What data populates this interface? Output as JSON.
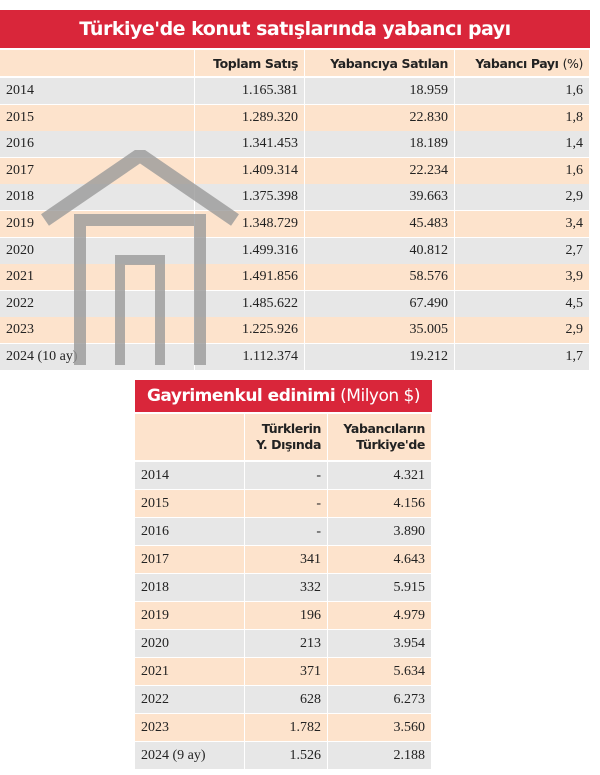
{
  "table1": {
    "title": "Türkiye'de konut satışlarında yabancı payı",
    "columns": [
      "Toplam Satış",
      "Yabancıya Satılan",
      "Yabancı Payı"
    ],
    "unit": "(%)",
    "rows": [
      [
        "2014",
        "1.165.381",
        "18.959",
        "1,6"
      ],
      [
        "2015",
        "1.289.320",
        "22.830",
        "1,8"
      ],
      [
        "2016",
        "1.341.453",
        "18.189",
        "1,4"
      ],
      [
        "2017",
        "1.409.314",
        "22.234",
        "1,6"
      ],
      [
        "2018",
        "1.375.398",
        "39.663",
        "2,9"
      ],
      [
        "2019",
        "1.348.729",
        "45.483",
        "3,4"
      ],
      [
        "2020",
        "1.499.316",
        "40.812",
        "2,7"
      ],
      [
        "2021",
        "1.491.856",
        "58.576",
        "3,9"
      ],
      [
        "2022",
        "1.485.622",
        "67.490",
        "4,5"
      ],
      [
        "2023",
        "1.225.926",
        "35.005",
        "2,9"
      ],
      [
        "2024 (10 ay)",
        "1.112.374",
        "19.212",
        "1,7"
      ]
    ]
  },
  "table2": {
    "title": "Gayrimenkul edinimi",
    "unit": "(Milyon $)",
    "columns": [
      [
        "Türklerin",
        "Y. Dışında"
      ],
      [
        "Yabancıların",
        "Türkiye'de"
      ]
    ],
    "rows": [
      [
        "2014",
        "-",
        "4.321"
      ],
      [
        "2015",
        "-",
        "4.156"
      ],
      [
        "2016",
        "-",
        "3.890"
      ],
      [
        "2017",
        "341",
        "4.643"
      ],
      [
        "2018",
        "332",
        "5.915"
      ],
      [
        "2019",
        "196",
        "4.979"
      ],
      [
        "2020",
        "213",
        "3.954"
      ],
      [
        "2021",
        "371",
        "5.634"
      ],
      [
        "2022",
        "628",
        "6.273"
      ],
      [
        "2023",
        "1.782",
        "3.560"
      ],
      [
        "2024 (9 ay)",
        "1.526",
        "2.188"
      ]
    ]
  }
}
